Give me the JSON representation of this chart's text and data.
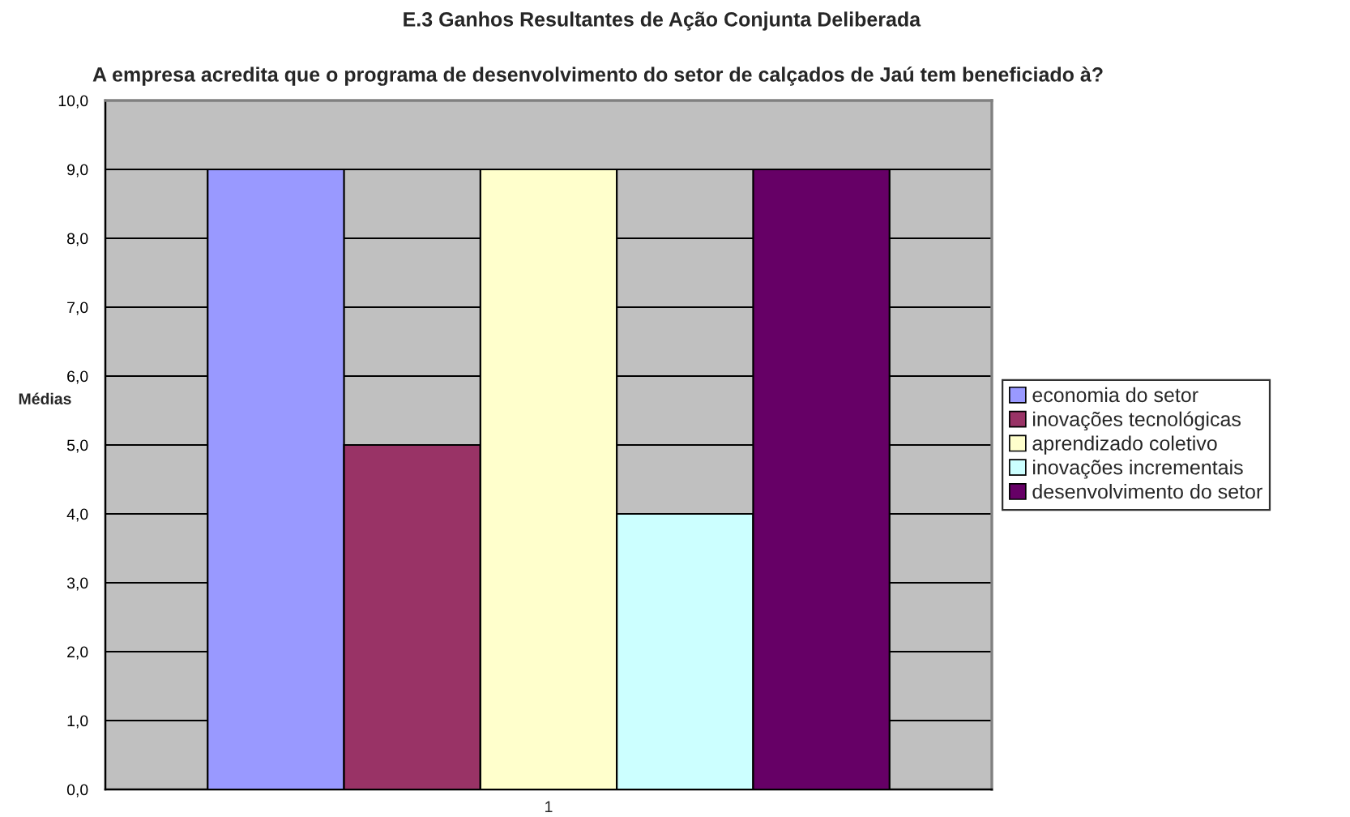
{
  "chart_data": {
    "type": "bar",
    "title": "E.3 Ganhos Resultantes de Ação Conjunta Deliberada",
    "subtitle": "A empresa acredita que o programa de desenvolvimento do setor de calçados de Jaú tem beneficiado à?",
    "ylabel": "Médias",
    "categories": [
      "1"
    ],
    "series": [
      {
        "name": "economia do setor",
        "color": "#9999ff",
        "values": [
          9
        ]
      },
      {
        "name": "inovações tecnológicas",
        "color": "#993366",
        "values": [
          5
        ]
      },
      {
        "name": "aprendizado coletivo",
        "color": "#ffffcc",
        "values": [
          9
        ]
      },
      {
        "name": "inovações incrementais",
        "color": "#ccffff",
        "values": [
          4
        ]
      },
      {
        "name": "desenvolvimento do setor",
        "color": "#660066",
        "values": [
          9
        ]
      }
    ],
    "ylim": [
      0,
      10
    ],
    "yticks": [
      {
        "value": 0,
        "label": "0,0"
      },
      {
        "value": 1,
        "label": "1,0"
      },
      {
        "value": 2,
        "label": "2,0"
      },
      {
        "value": 3,
        "label": "3,0"
      },
      {
        "value": 4,
        "label": "4,0"
      },
      {
        "value": 5,
        "label": "5,0"
      },
      {
        "value": 6,
        "label": "6,0"
      },
      {
        "value": 7,
        "label": "7,0"
      },
      {
        "value": 8,
        "label": "8,0"
      },
      {
        "value": 9,
        "label": "9,0"
      },
      {
        "value": 10,
        "label": "10,0"
      }
    ],
    "grid": "y",
    "legend": "right"
  }
}
